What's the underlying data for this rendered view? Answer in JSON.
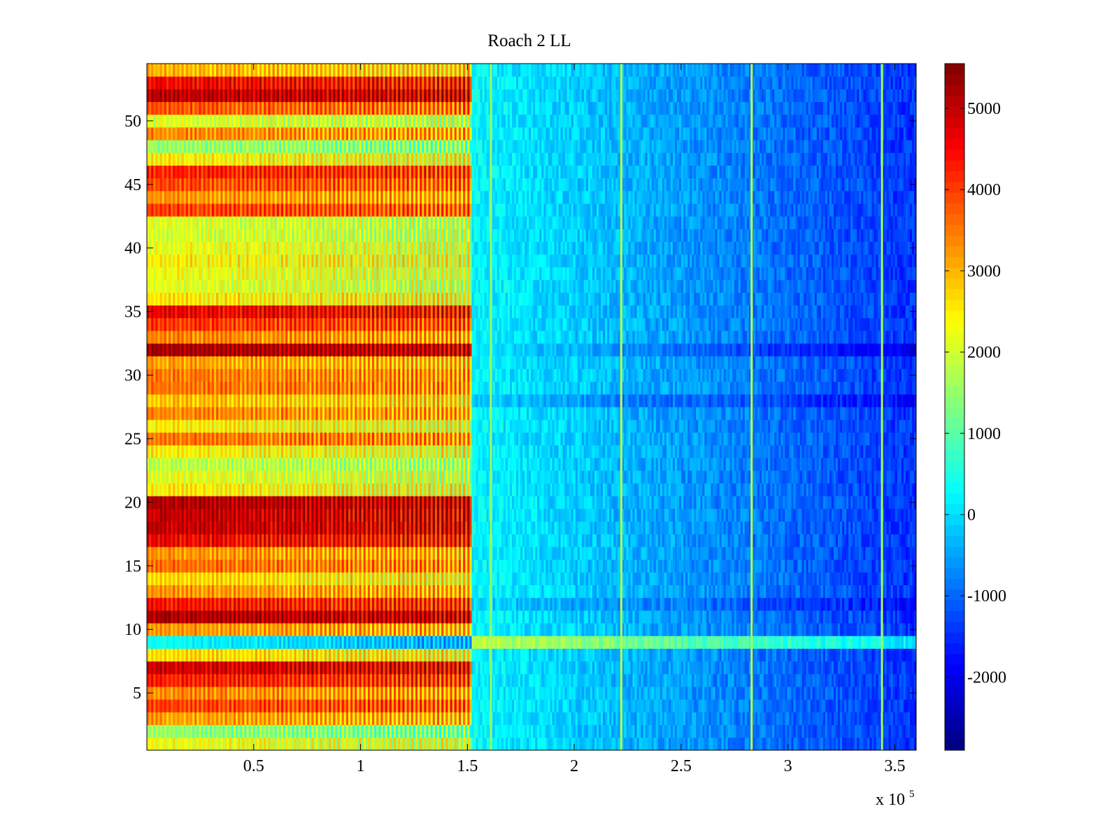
{
  "chart_data": {
    "type": "heatmap",
    "title": "Roach 2 LL",
    "xlabel": "",
    "ylabel": "",
    "x_range": [
      0,
      360000
    ],
    "y_range": [
      0.5,
      54.5
    ],
    "row_count": 54,
    "x_ticks": [
      0.5,
      1,
      1.5,
      2,
      2.5,
      3,
      3.5
    ],
    "x_tick_labels": [
      "0.5",
      "1",
      "1.5",
      "2",
      "2.5",
      "3",
      "3.5"
    ],
    "x_multiplier_base": "x 10",
    "x_multiplier_exponent": "5",
    "y_ticks": [
      5,
      10,
      15,
      20,
      25,
      30,
      35,
      40,
      45,
      50
    ],
    "y_tick_labels": [
      "5",
      "10",
      "15",
      "20",
      "25",
      "30",
      "35",
      "40",
      "45",
      "50"
    ],
    "colorbar": {
      "colormap": "jet",
      "range": [
        -2900,
        5550
      ],
      "ticks": [
        -2000,
        -1000,
        0,
        1000,
        2000,
        3000,
        4000,
        5000
      ],
      "tick_labels": [
        "-2000",
        "-1000",
        "0",
        "1000",
        "2000",
        "3000",
        "4000",
        "5000"
      ]
    },
    "segments": [
      {
        "name": "high-amplitude region",
        "x_range": [
          0,
          152000
        ],
        "typical_value": 3000
      },
      {
        "name": "low-amplitude region",
        "x_range": [
          152000,
          360000
        ],
        "typical_value": -500
      }
    ],
    "row_base_values_high_region": [
      2300,
      1500,
      3200,
      4000,
      3400,
      4300,
      4900,
      2700,
      400,
      3300,
      5200,
      4400,
      3300,
      2700,
      3600,
      3300,
      4600,
      5000,
      5000,
      5200,
      2500,
      2200,
      1900,
      2500,
      3600,
      2500,
      3400,
      2900,
      3600,
      3500,
      3200,
      5300,
      3400,
      4100,
      4700,
      2600,
      2200,
      2300,
      2500,
      2300,
      2100,
      2100,
      4000,
      3300,
      3900,
      4300,
      2500,
      1600,
      3400,
      2100,
      3800,
      5100,
      4600,
      3000
    ],
    "row_offsets_low_region": [
      0,
      0,
      0,
      0,
      0,
      0,
      0,
      0,
      1600,
      0,
      0,
      -300,
      0,
      0,
      0,
      0,
      0,
      0,
      0,
      0,
      0,
      0,
      0,
      0,
      0,
      0,
      0,
      -400,
      0,
      0,
      0,
      -700,
      0,
      0,
      0,
      0,
      0,
      0,
      0,
      0,
      0,
      0,
      0,
      0,
      0,
      0,
      0,
      0,
      0,
      0,
      0,
      0,
      0,
      0
    ],
    "vertical_spike_lines": [
      {
        "x": 161000,
        "value": 1600
      },
      {
        "x": 222000,
        "value": 1800
      },
      {
        "x": 283000,
        "value": 1800
      },
      {
        "x": 344000,
        "value": 1600
      }
    ]
  }
}
